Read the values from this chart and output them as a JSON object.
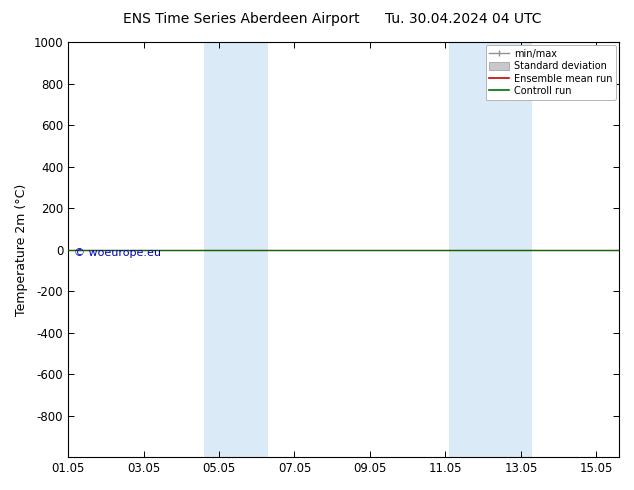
{
  "title_left": "ENS Time Series Aberdeen Airport",
  "title_right": "Tu. 30.04.2024 04 UTC",
  "ylabel": "Temperature 2m (°C)",
  "ylim_top": -1000,
  "ylim_bottom": 1000,
  "yticks": [
    -800,
    -600,
    -400,
    -200,
    0,
    200,
    400,
    600,
    800,
    1000
  ],
  "xlim_start": 0.0,
  "xlim_end": 14.6,
  "xtick_positions": [
    0,
    2,
    4,
    6,
    8,
    10,
    12,
    14
  ],
  "xtick_labels": [
    "01.05",
    "03.05",
    "05.05",
    "07.05",
    "09.05",
    "11.05",
    "13.05",
    "15.05"
  ],
  "shaded_bands": [
    {
      "xmin": 3.6,
      "xmax": 5.3
    },
    {
      "xmin": 10.1,
      "xmax": 12.3
    }
  ],
  "shade_color": "#daeaf7",
  "control_run_y": 0,
  "control_run_color": "#007000",
  "ensemble_mean_color": "#cc0000",
  "minmax_color": "#909090",
  "std_dev_color": "#c8c8c8",
  "copyright_text": "© woeurope.eu",
  "copyright_color": "#0000bb",
  "bg_color": "#ffffff",
  "legend_entries": [
    "min/max",
    "Standard deviation",
    "Ensemble mean run",
    "Controll run"
  ],
  "legend_colors": [
    "#909090",
    "#c8c8c8",
    "#cc0000",
    "#007000"
  ],
  "title_fontsize": 10,
  "axis_fontsize": 9,
  "tick_fontsize": 8.5,
  "copyright_fontsize": 8
}
